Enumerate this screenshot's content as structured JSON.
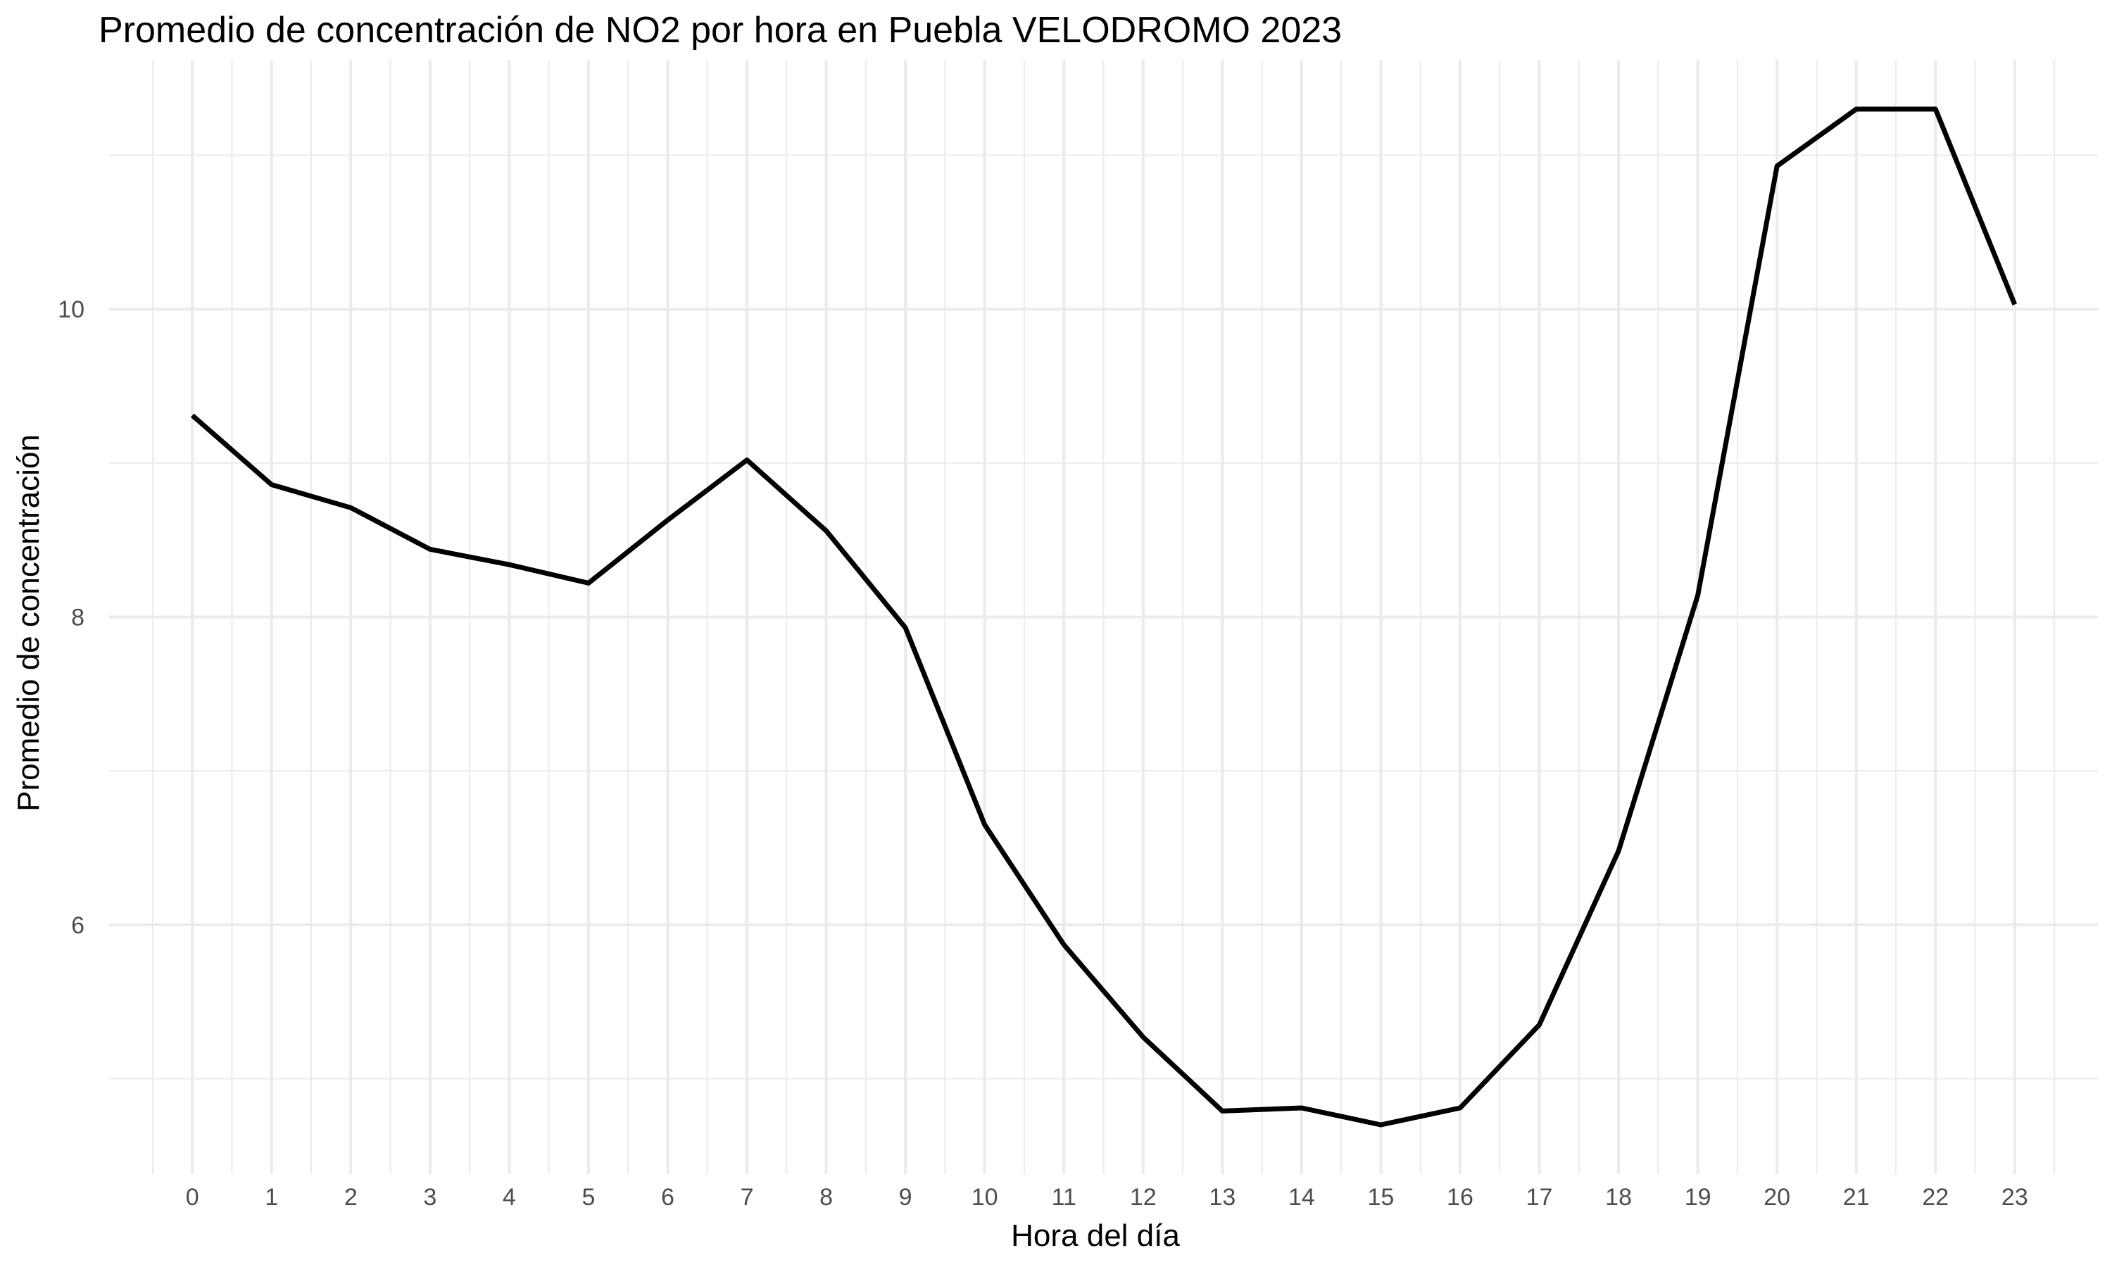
{
  "chart_data": {
    "type": "line",
    "title": "Promedio de concentración de NO2 por hora en Puebla VELODROMO 2023",
    "xlabel": "Hora del día",
    "ylabel": "Promedio de concentración",
    "x": [
      0,
      1,
      2,
      3,
      4,
      5,
      6,
      7,
      8,
      9,
      10,
      11,
      12,
      13,
      14,
      15,
      16,
      17,
      18,
      19,
      20,
      21,
      22,
      23
    ],
    "x_tick_labels": [
      "0",
      "1",
      "2",
      "3",
      "4",
      "5",
      "6",
      "7",
      "8",
      "9",
      "10",
      "11",
      "12",
      "13",
      "14",
      "15",
      "16",
      "17",
      "18",
      "19",
      "20",
      "21",
      "22",
      "23"
    ],
    "series": [
      {
        "values": [
          9.31,
          8.86,
          8.71,
          8.44,
          8.34,
          8.22,
          8.63,
          9.02,
          8.56,
          7.93,
          6.65,
          5.87,
          5.27,
          4.79,
          4.81,
          4.7,
          4.81,
          5.35,
          6.48,
          8.14,
          10.93,
          11.3,
          11.3,
          10.03
        ],
        "color": "#000000"
      }
    ],
    "y_ticks": [
      6,
      8,
      10
    ],
    "y_tick_labels": [
      "6",
      "8",
      "10"
    ],
    "xlim": [
      -1.05,
      24.05
    ],
    "ylim": [
      4.38,
      11.62
    ],
    "grid": true,
    "legend": "none"
  }
}
